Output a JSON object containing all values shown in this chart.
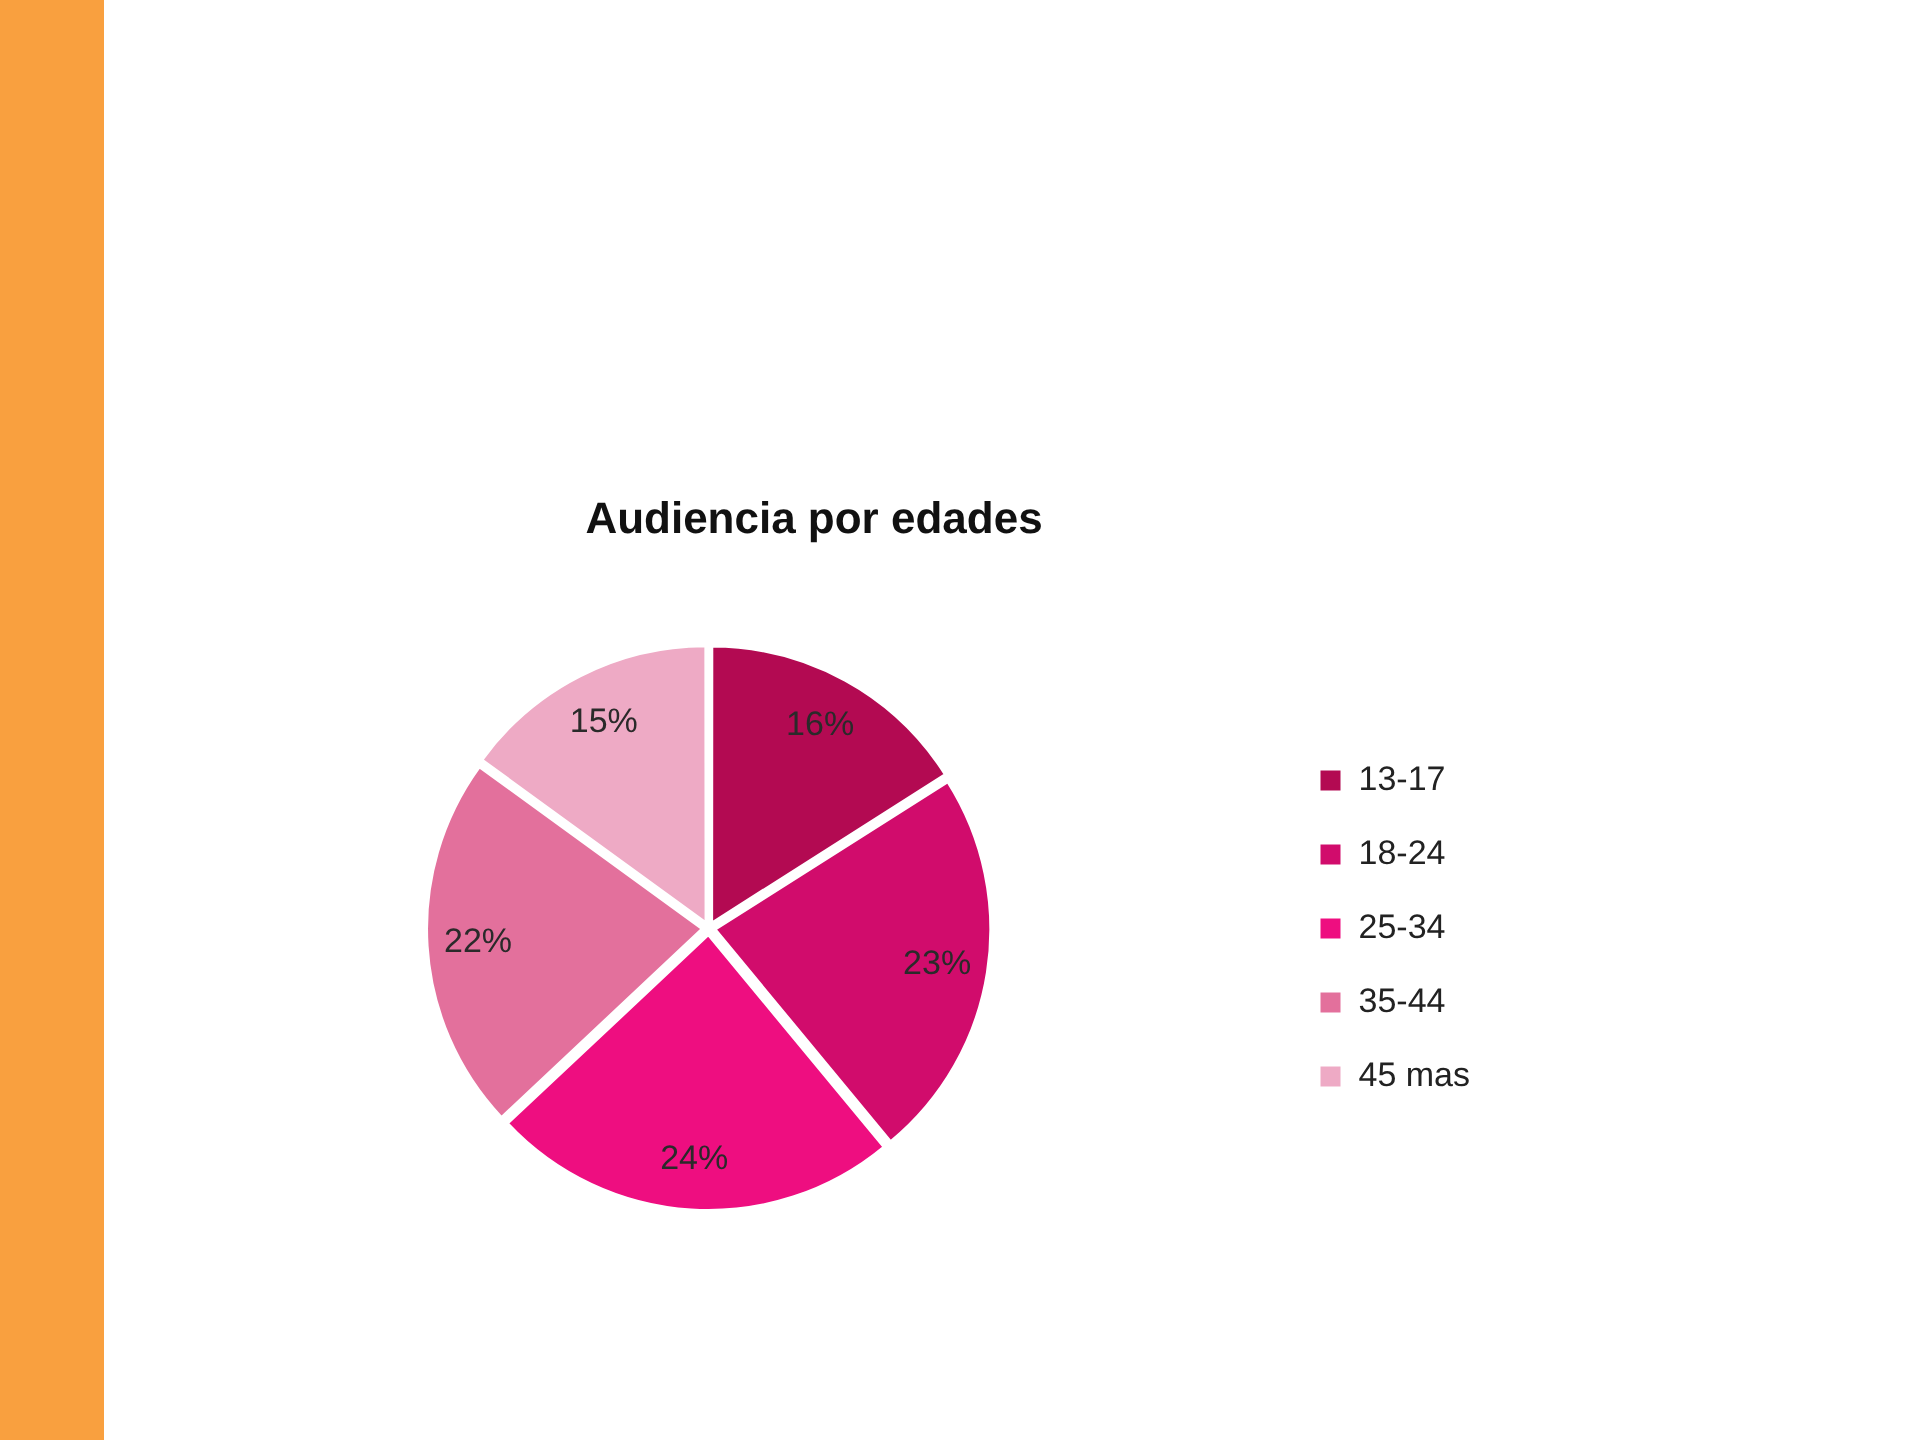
{
  "chart_data": {
    "type": "pie",
    "title": "Audiencia por edades",
    "categories": [
      "13-17",
      "18-24",
      "25-34",
      "35-44",
      "45 mas"
    ],
    "values": [
      16,
      23,
      24,
      22,
      15
    ],
    "colors": [
      "#b30a52",
      "#d10c6c",
      "#ee0e80",
      "#e3709c",
      "#eeaac5"
    ],
    "value_labels": [
      "16%",
      "23%",
      "24%",
      "22%",
      "15%"
    ],
    "legend": "right"
  }
}
